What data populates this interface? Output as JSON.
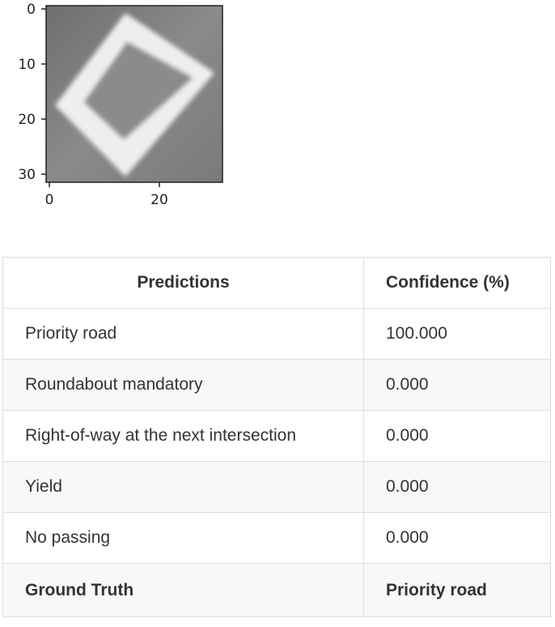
{
  "plot": {
    "x_ticks": [
      "0",
      "20"
    ],
    "y_ticks": [
      "0",
      "10",
      "20",
      "30"
    ]
  },
  "table": {
    "headers": [
      "Predictions",
      "Confidence (%)"
    ],
    "rows": [
      {
        "label": "Priority road",
        "confidence": "100.000"
      },
      {
        "label": "Roundabout mandatory",
        "confidence": "0.000"
      },
      {
        "label": "Right-of-way at the next intersection",
        "confidence": "0.000"
      },
      {
        "label": "Yield",
        "confidence": "0.000"
      },
      {
        "label": "No passing",
        "confidence": "0.000"
      }
    ],
    "footer": {
      "label": "Ground Truth",
      "value": "Priority road"
    }
  }
}
